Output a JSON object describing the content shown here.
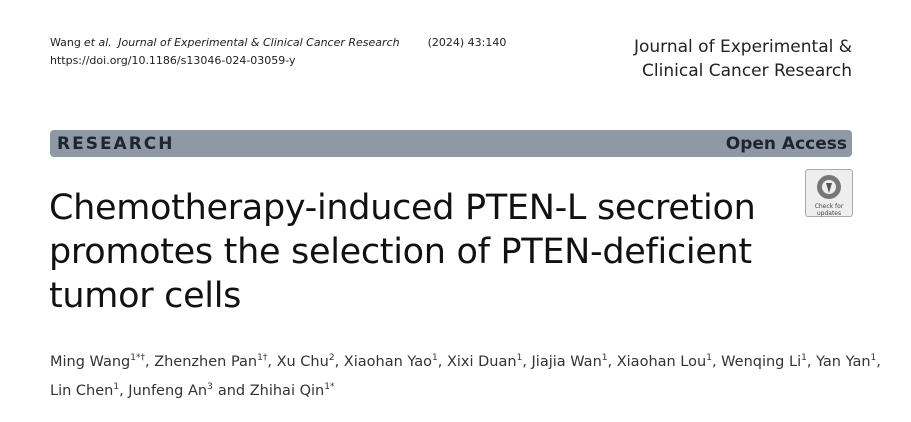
{
  "header": {
    "citation": {
      "author": "Wang",
      "etal": "et al.",
      "journal": "Journal of Experimental & Clinical Cancer Research",
      "volume": "(2024) 43:140",
      "doi": "https://doi.org/10.1186/s13046-024-03059-y"
    },
    "journal_name": [
      "Journal of Experimental &",
      "Clinical Cancer Research"
    ]
  },
  "banner": {
    "type": "RESEARCH",
    "access": "Open Access"
  },
  "title": [
    "Chemotherapy-induced PTEN-L secretion",
    "promotes the selection of PTEN-deficient",
    "tumor cells"
  ],
  "badge": [
    "Check for",
    "updates"
  ],
  "authors": [
    [
      {
        "name": "Ming Wang",
        "sup": "1*†",
        "sep": ","
      },
      {
        "name": "Zhenzhen Pan",
        "sup": "1†",
        "sep": ","
      },
      {
        "name": "Xu Chu",
        "sup": "2",
        "sep": ","
      },
      {
        "name": "Xiaohan Yao",
        "sup": "1",
        "sep": ","
      },
      {
        "name": "Xixi Duan",
        "sup": "1",
        "sep": ","
      },
      {
        "name": "Jiajia Wan",
        "sup": "1",
        "sep": ","
      },
      {
        "name": "Xiaohan Lou",
        "sup": "1",
        "sep": ","
      },
      {
        "name": "Wenqing Li",
        "sup": "1",
        "sep": ","
      },
      {
        "name": "Yan Yan",
        "sup": "1",
        "sep": ","
      }
    ],
    [
      {
        "name": "Lin Chen",
        "sup": "1",
        "sep": ","
      },
      {
        "name": "Junfeng An",
        "sup": "3",
        "sep": "and"
      },
      {
        "name": "Zhihai Qin",
        "sup": "1*"
      }
    ]
  ]
}
